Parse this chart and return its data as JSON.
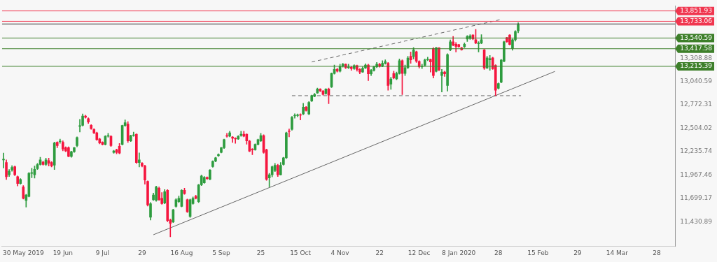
{
  "chart_data": {
    "type": "candlestick",
    "categories": [
      null,
      null,
      null,
      null,
      null,
      null,
      null,
      "30 May 2019",
      null,
      null,
      null,
      null,
      null,
      null,
      null,
      null,
      null,
      null,
      null,
      null,
      null,
      "19 Jun",
      null,
      null,
      null,
      null,
      null,
      null,
      null,
      null,
      null,
      null,
      null,
      null,
      null,
      "9 Jul",
      null,
      null,
      null,
      null,
      null,
      null,
      null,
      null,
      null,
      null,
      null,
      null,
      null,
      "29",
      null,
      null,
      null,
      null,
      null,
      null,
      null,
      null,
      null,
      null,
      null,
      null,
      null,
      "16 Aug",
      null,
      null,
      null,
      null,
      null,
      null,
      null,
      null,
      null,
      null,
      null,
      null,
      null,
      "5 Sep",
      null,
      null,
      null,
      null,
      null,
      null,
      null,
      null,
      null,
      null,
      null,
      null,
      null,
      "25",
      null,
      null,
      null,
      null,
      null,
      null,
      null,
      null,
      null,
      null,
      null,
      null,
      null,
      "15 Oct",
      null,
      null,
      null,
      null,
      null,
      null,
      null,
      null,
      null,
      null,
      null,
      null,
      null,
      "4 Nov",
      null,
      null,
      null,
      null,
      null,
      null,
      null,
      null,
      null,
      null,
      null,
      null,
      null,
      "22",
      null,
      null,
      null,
      null,
      null,
      null,
      null,
      null,
      null,
      null,
      null,
      null,
      null,
      "12 Dec",
      null,
      null,
      null,
      null,
      null,
      null,
      null,
      null,
      null,
      null,
      null,
      null,
      null,
      "8 Jan 2020",
      null,
      null,
      null,
      null,
      null,
      null,
      null,
      null,
      null,
      null,
      null,
      null,
      null,
      "28",
      null,
      null,
      null,
      null,
      null,
      null,
      null,
      null,
      null,
      null,
      null,
      null,
      null,
      "15 Feb",
      null,
      null,
      null,
      null,
      null,
      null,
      null,
      null,
      null,
      null,
      null,
      null,
      null,
      "29",
      null,
      null,
      null,
      null,
      null,
      null,
      null,
      null,
      null,
      null,
      null,
      null,
      null,
      "14 Mar",
      null,
      null,
      null,
      null,
      null,
      null,
      null,
      null,
      null,
      null,
      null,
      null,
      null,
      "28",
      null,
      null,
      null,
      null,
      null,
      null
    ],
    "ohlc": [
      [
        12140,
        12218,
        12048,
        12145
      ],
      [
        12110,
        12140,
        11915,
        11947
      ],
      [
        11970,
        12030,
        11950,
        12009
      ],
      [
        12024,
        12075,
        12010,
        12055
      ],
      [
        12063,
        12070,
        11960,
        11970
      ],
      [
        11947,
        11955,
        11840,
        11869
      ],
      [
        11869,
        11925,
        11860,
        11916
      ],
      [
        11830,
        11845,
        11690,
        11698
      ],
      [
        11675,
        11745,
        11598,
        11737
      ],
      [
        11721,
        11995,
        11715,
        11986
      ],
      [
        11986,
        12045,
        11935,
        11990
      ],
      [
        11970,
        12070,
        11930,
        12032
      ],
      [
        12040,
        12100,
        12030,
        12087
      ],
      [
        12087,
        12170,
        12080,
        12141
      ],
      [
        12117,
        12125,
        12080,
        12087
      ],
      [
        12087,
        12160,
        12075,
        12141
      ],
      [
        12133,
        12160,
        12070,
        12102
      ],
      [
        12110,
        12120,
        12060,
        12071
      ],
      [
        12079,
        12345,
        12030,
        12335
      ],
      [
        12343,
        12350,
        12280,
        12304
      ],
      [
        12350,
        12380,
        12330,
        12355
      ],
      [
        12343,
        12360,
        12245,
        12265
      ],
      [
        12280,
        12290,
        12235,
        12242
      ],
      [
        12280,
        12290,
        12175,
        12180
      ],
      [
        12180,
        12240,
        12170,
        12234
      ],
      [
        12234,
        12285,
        12225,
        12280
      ],
      [
        12304,
        12405,
        12290,
        12397
      ],
      [
        12525,
        12606,
        12460,
        12530
      ],
      [
        12537,
        12668,
        12530,
        12645
      ],
      [
        12645,
        12655,
        12620,
        12630
      ],
      [
        12614,
        12625,
        12560,
        12575
      ],
      [
        12537,
        12545,
        12490,
        12498
      ],
      [
        12490,
        12500,
        12440,
        12451
      ],
      [
        12451,
        12460,
        12365,
        12373
      ],
      [
        12381,
        12390,
        12325,
        12335
      ],
      [
        12343,
        12350,
        12310,
        12319
      ],
      [
        12319,
        12420,
        12310,
        12412
      ],
      [
        12412,
        12445,
        12400,
        12415
      ],
      [
        12412,
        12420,
        12295,
        12304
      ],
      [
        12226,
        12250,
        12215,
        12242
      ],
      [
        12257,
        12265,
        12210,
        12226
      ],
      [
        12296,
        12330,
        12210,
        12218
      ],
      [
        12319,
        12540,
        12310,
        12536
      ],
      [
        12536,
        12600,
        12525,
        12567
      ],
      [
        12552,
        12580,
        12340,
        12358
      ],
      [
        12358,
        12425,
        12350,
        12420
      ],
      [
        12420,
        12460,
        12410,
        12428
      ],
      [
        12435,
        12440,
        12100,
        12110
      ],
      [
        12110,
        12220,
        12060,
        12141
      ],
      [
        12102,
        12110,
        12060,
        12071
      ],
      [
        12071,
        12080,
        11860,
        11908
      ],
      [
        11893,
        11900,
        11610,
        11621
      ],
      [
        11481,
        11650,
        11450,
        11637
      ],
      [
        11683,
        11760,
        11675,
        11737
      ],
      [
        11675,
        11840,
        11665,
        11830
      ],
      [
        11815,
        11830,
        11675,
        11683
      ],
      [
        11698,
        11765,
        11630,
        11637
      ],
      [
        11644,
        11800,
        11635,
        11776
      ],
      [
        11792,
        11800,
        11430,
        11443
      ],
      [
        11450,
        11460,
        11257,
        11412
      ],
      [
        11427,
        11575,
        11420,
        11567
      ],
      [
        11605,
        11695,
        11595,
        11683
      ],
      [
        11660,
        11725,
        11650,
        11698
      ],
      [
        11605,
        11800,
        11600,
        11792
      ],
      [
        11792,
        11815,
        11745,
        11753
      ],
      [
        11683,
        11690,
        11535,
        11543
      ],
      [
        11489,
        11690,
        11480,
        11683
      ],
      [
        11637,
        11715,
        11630,
        11698
      ],
      [
        11721,
        11735,
        11690,
        11698
      ],
      [
        11660,
        11860,
        11650,
        11854
      ],
      [
        11854,
        11965,
        11845,
        11955
      ],
      [
        11877,
        11950,
        11870,
        11939
      ],
      [
        11939,
        11945,
        11915,
        11924
      ],
      [
        11916,
        12030,
        11910,
        12024
      ],
      [
        12063,
        12130,
        12055,
        12125
      ],
      [
        12125,
        12170,
        12118,
        12164
      ],
      [
        12187,
        12210,
        12180,
        12203
      ],
      [
        12226,
        12285,
        12220,
        12280
      ],
      [
        12280,
        12380,
        12270,
        12373
      ],
      [
        12420,
        12445,
        12400,
        12412
      ],
      [
        12412,
        12470,
        12405,
        12451
      ],
      [
        12404,
        12410,
        12340,
        12389
      ],
      [
        12389,
        12395,
        12330,
        12381
      ],
      [
        12381,
        12420,
        12375,
        12412
      ],
      [
        12420,
        12470,
        12410,
        12435
      ],
      [
        12435,
        12470,
        12405,
        12412
      ],
      [
        12435,
        12440,
        12320,
        12358
      ],
      [
        12358,
        12365,
        12235,
        12241
      ],
      [
        12265,
        12270,
        12200,
        12257
      ],
      [
        12257,
        12325,
        12250,
        12319
      ],
      [
        12319,
        12380,
        12310,
        12373
      ],
      [
        12358,
        12445,
        12350,
        12420
      ],
      [
        12420,
        12430,
        12215,
        12226
      ],
      [
        12257,
        12265,
        11905,
        11916
      ],
      [
        11932,
        11985,
        11830,
        11970
      ],
      [
        11970,
        12070,
        11945,
        12063
      ],
      [
        12017,
        12100,
        12005,
        12079
      ],
      [
        12079,
        12090,
        11950,
        11970
      ],
      [
        11970,
        12110,
        11965,
        12079
      ],
      [
        12087,
        12170,
        12080,
        12164
      ],
      [
        12164,
        12460,
        12155,
        12451
      ],
      [
        12474,
        12495,
        12405,
        12466
      ],
      [
        12490,
        12640,
        12480,
        12630
      ],
      [
        12645,
        12670,
        12620,
        12653
      ],
      [
        12650,
        12668,
        12636,
        12657
      ],
      [
        12660,
        12670,
        12600,
        12653
      ],
      [
        12668,
        12790,
        12660,
        12746
      ],
      [
        12746,
        12755,
        12700,
        12707
      ],
      [
        12668,
        12810,
        12660,
        12800
      ],
      [
        12816,
        12885,
        12810,
        12878
      ],
      [
        12870,
        12905,
        12865,
        12893
      ],
      [
        12909,
        12965,
        12905,
        12955
      ],
      [
        12955,
        12960,
        12925,
        12932
      ],
      [
        12932,
        12940,
        12885,
        12893
      ],
      [
        12901,
        12960,
        12895,
        12955
      ],
      [
        12955,
        12965,
        12785,
        12885
      ],
      [
        12979,
        13140,
        12970,
        13134
      ],
      [
        13134,
        13230,
        13125,
        13180
      ],
      [
        13180,
        13195,
        13150,
        13160
      ],
      [
        13160,
        13240,
        13150,
        13215
      ],
      [
        13215,
        13250,
        13205,
        13240
      ],
      [
        13240,
        13245,
        13190,
        13200
      ],
      [
        13200,
        13240,
        13190,
        13205
      ],
      [
        13205,
        13215,
        13170,
        13190
      ],
      [
        13190,
        13235,
        13180,
        13225
      ],
      [
        13225,
        13230,
        13160,
        13180
      ],
      [
        13180,
        13190,
        13130,
        13150
      ],
      [
        13150,
        13210,
        13145,
        13195
      ],
      [
        13195,
        13245,
        13190,
        13230
      ],
      [
        13230,
        13240,
        13050,
        13130
      ],
      [
        13130,
        13180,
        13110,
        13170
      ],
      [
        13170,
        13220,
        13160,
        13210
      ],
      [
        13210,
        13260,
        13200,
        13240
      ],
      [
        13240,
        13250,
        13205,
        13215
      ],
      [
        13215,
        13280,
        13210,
        13250
      ],
      [
        13250,
        13290,
        13240,
        13270
      ],
      [
        13250,
        13260,
        12940,
        12995
      ],
      [
        13010,
        13090,
        12950,
        13070
      ],
      [
        13134,
        13160,
        13070,
        13080
      ],
      [
        13070,
        13150,
        13060,
        13134
      ],
      [
        13134,
        13300,
        13125,
        13280
      ],
      [
        13280,
        13290,
        12890,
        13134
      ],
      [
        13134,
        13230,
        13110,
        13200
      ],
      [
        13200,
        13330,
        13190,
        13310
      ],
      [
        13330,
        13380,
        13250,
        13290
      ],
      [
        13328,
        13430,
        13300,
        13405
      ],
      [
        13382,
        13390,
        13260,
        13273
      ],
      [
        13273,
        13280,
        13195,
        13211
      ],
      [
        13211,
        13240,
        13190,
        13215
      ],
      [
        13227,
        13300,
        13215,
        13289
      ],
      [
        13289,
        13320,
        13280,
        13292
      ],
      [
        13295,
        13300,
        13150,
        13265
      ],
      [
        13421,
        13430,
        13080,
        13110
      ],
      [
        13157,
        13435,
        13150,
        13428
      ],
      [
        13428,
        13430,
        13165,
        13172
      ],
      [
        13110,
        13180,
        12920,
        13149
      ],
      [
        13149,
        13160,
        13100,
        13130
      ],
      [
        12994,
        13360,
        12930,
        13351
      ],
      [
        13405,
        13520,
        13395,
        13498
      ],
      [
        13498,
        13560,
        13450,
        13459
      ],
      [
        13470,
        13490,
        13380,
        13445
      ],
      [
        13465,
        13470,
        13435,
        13440
      ],
      [
        13428,
        13435,
        13400,
        13405
      ],
      [
        13440,
        13485,
        13430,
        13470
      ],
      [
        13529,
        13570,
        13500,
        13560
      ],
      [
        13535,
        13580,
        13525,
        13565
      ],
      [
        13575,
        13580,
        13520,
        13530
      ],
      [
        13521,
        13640,
        13475,
        13483
      ],
      [
        13475,
        13500,
        13380,
        13480
      ],
      [
        13483,
        13580,
        13475,
        13521
      ],
      [
        13405,
        13410,
        13180,
        13196
      ],
      [
        13196,
        13330,
        13190,
        13312
      ],
      [
        13290,
        13340,
        13170,
        13305
      ],
      [
        13312,
        13320,
        13180,
        13188
      ],
      [
        13227,
        13235,
        12878,
        12940
      ],
      [
        12963,
        13025,
        12955,
        13017
      ],
      [
        13033,
        13295,
        13025,
        13289
      ],
      [
        13273,
        13505,
        13265,
        13498
      ],
      [
        13545,
        13550,
        13490,
        13498
      ],
      [
        13576,
        13580,
        13460,
        13467
      ],
      [
        13421,
        13530,
        13400,
        13521
      ],
      [
        13521,
        13625,
        13505,
        13615
      ],
      [
        13622,
        13715,
        13600,
        13692
      ],
      null,
      null,
      null,
      null,
      null,
      null,
      null,
      null,
      null,
      null,
      null,
      null,
      null,
      null,
      null,
      null,
      null,
      null,
      null,
      null,
      null,
      null,
      null,
      null,
      null,
      null,
      null,
      null,
      null,
      null,
      null,
      null,
      null,
      null,
      null,
      null,
      null,
      null,
      null,
      null,
      null,
      null,
      null,
      null,
      null,
      null,
      null,
      null,
      null,
      null,
      null,
      null,
      null,
      null,
      null
    ],
    "colors": [
      "#2e9c3f",
      "#f5163f",
      "#2e9c3f",
      "#2e9c3f",
      "#f5163f",
      "#f5163f",
      "#2e9c3f",
      "#f5163f",
      "#2e9c3f",
      "#2e9c3f",
      "#2e9c3f",
      "#2e9c3f",
      "#2e9c3f",
      "#2e9c3f",
      "#f5163f",
      "#2e9c3f",
      "#f5163f",
      "#f5163f",
      "#2e9c3f",
      "#f5163f",
      "#2e9c3f",
      "#f5163f",
      "#f5163f",
      "#f5163f",
      "#2e9c3f",
      "#2e9c3f",
      "#2e9c3f",
      "#2e9c3f",
      "#2e9c3f",
      "#f5163f",
      "#f5163f",
      "#f5163f",
      "#f5163f",
      "#f5163f",
      "#f5163f",
      "#f5163f",
      "#2e9c3f",
      "#2e9c3f",
      "#f5163f",
      "#2e9c3f",
      "#f5163f",
      "#f5163f",
      "#2e9c3f",
      "#2e9c3f",
      "#f5163f",
      "#2e9c3f",
      "#2e9c3f",
      "#f5163f",
      "#2e9c3f",
      "#f5163f",
      "#f5163f",
      "#f5163f",
      "#2e9c3f",
      "#2e9c3f",
      "#2e9c3f",
      "#f5163f",
      "#f5163f",
      "#2e9c3f",
      "#f5163f",
      "#f5163f",
      "#2e9c3f",
      "#2e9c3f",
      "#2e9c3f",
      "#2e9c3f",
      "#f5163f",
      "#f5163f",
      "#2e9c3f",
      "#2e9c3f",
      "#f5163f",
      "#2e9c3f",
      "#2e9c3f",
      "#2e9c3f",
      "#f5163f",
      "#2e9c3f",
      "#2e9c3f",
      "#2e9c3f",
      "#2e9c3f",
      "#2e9c3f",
      "#2e9c3f",
      "#f5163f",
      "#2e9c3f",
      "#f5163f",
      "#f5163f",
      "#2e9c3f",
      "#2e9c3f",
      "#f5163f",
      "#f5163f",
      "#f5163f",
      "#f5163f",
      "#2e9c3f",
      "#2e9c3f",
      "#2e9c3f",
      "#f5163f",
      "#f5163f",
      "#2e9c3f",
      "#2e9c3f",
      "#2e9c3f",
      "#f5163f",
      "#2e9c3f",
      "#2e9c3f",
      "#2e9c3f",
      "#f5163f",
      "#2e9c3f",
      "#2e9c3f",
      "#2e9c3f",
      "#f5163f",
      "#2e9c3f",
      "#f5163f",
      "#2e9c3f",
      "#2e9c3f",
      "#2e9c3f",
      "#2e9c3f",
      "#f5163f",
      "#f5163f",
      "#2e9c3f",
      "#f5163f",
      "#2e9c3f",
      "#2e9c3f",
      "#f5163f",
      "#2e9c3f",
      "#2e9c3f",
      "#f5163f",
      "#2e9c3f",
      "#f5163f",
      "#2e9c3f",
      "#f5163f",
      "#f5163f",
      "#2e9c3f",
      "#2e9c3f",
      "#f5163f",
      "#2e9c3f",
      "#2e9c3f",
      "#2e9c3f",
      "#f5163f",
      "#2e9c3f",
      "#2e9c3f",
      "#f5163f",
      "#2e9c3f",
      "#f5163f",
      "#2e9c3f",
      "#2e9c3f",
      "#f5163f",
      "#2e9c3f",
      "#2e9c3f",
      "#f5163f",
      "#2e9c3f",
      "#f5163f",
      "#f5163f",
      "#2e9c3f",
      "#2e9c3f",
      "#2e9c3f",
      "#f5163f",
      "#f5163f",
      "#2e9c3f",
      "#f5163f",
      "#2e9c3f",
      "#f5163f",
      "#2e9c3f",
      "#2e9c3f",
      "#f5163f",
      "#f5163f",
      "#f5163f",
      "#f5163f",
      "#2e9c3f",
      "#2e9c3f",
      "#2e9c3f",
      "#f5163f",
      "#f5163f",
      "#2e9c3f",
      "#2e9c3f",
      "#f5163f",
      "#2e9c3f",
      "#2e9c3f",
      "#f5163f",
      "#f5163f",
      "#2e9c3f",
      "#2e9c3f",
      "#2e9c3f",
      "#f5163f",
      "#f5163f",
      "#2e9c3f",
      "#2e9c3f",
      "#2e9c3f",
      null,
      null,
      null,
      null,
      null,
      null,
      null,
      null,
      null,
      null,
      null,
      null,
      null,
      null,
      null,
      null,
      null,
      null,
      null,
      null,
      null,
      null,
      null,
      null,
      null,
      null,
      null,
      null,
      null,
      null,
      null,
      null,
      null,
      null,
      null,
      null,
      null,
      null,
      null,
      null,
      null,
      null,
      null,
      null,
      null,
      null,
      null,
      null,
      null,
      null,
      null,
      null,
      null,
      null,
      null
    ],
    "series": [
      {
        "type": "line",
        "color": "#666666",
        "line_style": "solid",
        "values": [
          null,
          null,
          null,
          null,
          null,
          null,
          null,
          null,
          null,
          null,
          null,
          null,
          null,
          null,
          null,
          null,
          null,
          null,
          null,
          null,
          null,
          null,
          null,
          null,
          null,
          null,
          null,
          null,
          null,
          null,
          null,
          null,
          null,
          null,
          null,
          null,
          null,
          null,
          null,
          null,
          null,
          null,
          null,
          null,
          null,
          null,
          null,
          null,
          null,
          null,
          null,
          null,
          null,
          11280,
          null,
          null,
          null,
          null,
          null,
          null,
          null,
          null,
          null,
          null,
          null,
          null,
          null,
          null,
          null,
          null,
          null,
          null,
          null,
          null,
          null,
          null,
          null,
          null,
          null,
          null,
          null,
          null,
          null,
          null,
          null,
          null,
          null,
          null,
          null,
          null,
          null,
          null,
          null,
          null,
          null,
          null,
          null,
          null,
          null,
          null,
          null,
          null,
          null,
          null,
          null,
          null,
          null,
          null,
          null,
          null,
          null,
          null,
          null,
          null,
          null,
          null,
          null,
          null,
          null,
          null,
          null,
          null,
          null,
          null,
          null,
          null,
          null,
          null,
          null,
          null,
          null,
          null,
          null,
          null,
          null,
          null,
          null,
          null,
          null,
          null,
          null,
          null,
          null,
          null,
          null,
          null,
          null,
          null,
          null,
          null,
          null,
          null,
          null,
          null,
          null,
          null,
          null,
          null,
          null,
          null,
          null,
          null,
          null,
          null,
          null,
          null,
          null,
          null,
          null,
          null,
          null,
          null,
          null,
          null,
          null,
          null,
          null,
          null,
          null,
          null,
          null,
          null,
          null,
          null,
          null,
          null,
          null,
          null,
          null,
          null,
          null,
          null,
          null,
          null,
          null,
          13157,
          null,
          null,
          null,
          null,
          null,
          null,
          null,
          null,
          null,
          null,
          null,
          null,
          null,
          null,
          null,
          null,
          null,
          null,
          null,
          null,
          null,
          null,
          null,
          null,
          null,
          null,
          null,
          null,
          null,
          null,
          null,
          null,
          null,
          null,
          null,
          null,
          null,
          null,
          null,
          null,
          null,
          null
        ]
      },
      {
        "type": "line",
        "color": "#666666",
        "line_style": "dashed",
        "values": [
          null,
          null,
          null,
          null,
          null,
          null,
          null,
          null,
          null,
          null,
          null,
          null,
          null,
          null,
          null,
          null,
          null,
          null,
          null,
          null,
          null,
          null,
          null,
          null,
          null,
          null,
          null,
          null,
          null,
          null,
          null,
          null,
          null,
          null,
          null,
          null,
          null,
          null,
          null,
          null,
          null,
          null,
          null,
          null,
          null,
          null,
          null,
          null,
          null,
          null,
          null,
          null,
          null,
          null,
          null,
          null,
          null,
          null,
          null,
          null,
          null,
          null,
          null,
          null,
          null,
          null,
          null,
          null,
          null,
          null,
          null,
          null,
          null,
          null,
          null,
          null,
          null,
          null,
          null,
          null,
          null,
          null,
          null,
          null,
          null,
          null,
          null,
          null,
          null,
          null,
          null,
          null,
          null,
          null,
          null,
          null,
          null,
          null,
          null,
          null,
          null,
          null,
          null,
          null,
          null,
          null,
          null,
          null,
          null,
          13265,
          null,
          null,
          null,
          null,
          null,
          null,
          null,
          null,
          null,
          null,
          null,
          null,
          null,
          null,
          null,
          null,
          null,
          null,
          null,
          null,
          null,
          null,
          null,
          null,
          null,
          null,
          null,
          null,
          null,
          null,
          null,
          null,
          null,
          null,
          null,
          null,
          null,
          null,
          null,
          null,
          null,
          null,
          null,
          null,
          null,
          null,
          null,
          null,
          null,
          null,
          null,
          null,
          null,
          null,
          null,
          null,
          null,
          null,
          null,
          null,
          null,
          null,
          null,
          null,
          null,
          null,
          13754,
          null,
          null,
          null,
          null,
          null,
          null,
          null,
          null,
          null,
          null,
          null,
          null,
          null,
          null,
          null,
          null,
          null,
          null,
          null,
          null,
          null,
          null,
          null,
          null,
          null,
          null,
          null,
          null,
          null,
          null,
          null,
          null,
          null,
          null,
          null,
          null,
          null,
          null,
          null,
          null,
          null,
          null,
          null,
          null,
          null,
          null,
          null,
          null,
          null,
          null,
          null,
          null,
          null,
          null,
          null,
          null,
          null,
          null,
          null,
          null,
          null
        ]
      },
      {
        "type": "line",
        "color": "#666666",
        "line_style": "dashed",
        "values": [
          null,
          null,
          null,
          null,
          null,
          null,
          null,
          null,
          null,
          null,
          null,
          null,
          null,
          null,
          null,
          null,
          null,
          null,
          null,
          null,
          null,
          null,
          null,
          null,
          null,
          null,
          null,
          null,
          null,
          null,
          null,
          null,
          null,
          null,
          null,
          null,
          null,
          null,
          null,
          null,
          null,
          null,
          null,
          null,
          null,
          null,
          null,
          null,
          null,
          null,
          null,
          null,
          null,
          null,
          null,
          null,
          null,
          null,
          null,
          null,
          null,
          null,
          null,
          null,
          null,
          null,
          null,
          null,
          null,
          null,
          null,
          null,
          null,
          null,
          null,
          null,
          null,
          null,
          null,
          null,
          null,
          null,
          null,
          null,
          null,
          null,
          null,
          null,
          null,
          null,
          null,
          null,
          null,
          null,
          null,
          null,
          null,
          null,
          null,
          null,
          null,
          null,
          12878,
          null,
          null,
          null,
          null,
          null,
          null,
          null,
          null,
          null,
          null,
          null,
          null,
          null,
          null,
          null,
          null,
          null,
          null,
          null,
          null,
          null,
          null,
          null,
          null,
          null,
          null,
          null,
          null,
          null,
          null,
          null,
          null,
          null,
          null,
          null,
          null,
          null,
          null,
          null,
          null,
          null,
          null,
          null,
          null,
          null,
          null,
          null,
          null,
          null,
          null,
          null,
          null,
          null,
          null,
          null,
          null,
          null,
          null,
          null,
          null,
          null,
          null,
          null,
          null,
          null,
          null,
          null,
          null,
          null,
          null,
          null,
          null,
          null,
          null,
          null,
          null,
          null,
          null,
          null,
          null,
          12878,
          null,
          null,
          null,
          null,
          null,
          null,
          null,
          null,
          null,
          null,
          null,
          null,
          null,
          null,
          null,
          null,
          null,
          null,
          null,
          null,
          null,
          null,
          null,
          null,
          null,
          null,
          null,
          null,
          null,
          null,
          null,
          null,
          null,
          null,
          null,
          null,
          null,
          null,
          null,
          null,
          null,
          null,
          null,
          null,
          null,
          null,
          null,
          null,
          null,
          null,
          null,
          null,
          null,
          null
        ]
      }
    ],
    "ylim": [
      11150,
      13910
    ],
    "yticks": [
      {
        "value": 11430.89,
        "label": "11,430.89"
      },
      {
        "value": 11699.17,
        "label": "11,699.17"
      },
      {
        "value": 11967.46,
        "label": "11,967.46"
      },
      {
        "value": 12235.74,
        "label": "12,235.74"
      },
      {
        "value": 12504.02,
        "label": "12,504.02"
      },
      {
        "value": 12772.31,
        "label": "12,772.31"
      },
      {
        "value": 13040.59,
        "label": "13,040.59"
      },
      {
        "value": 13308.88,
        "label": "13,308.88"
      }
    ],
    "ref_lines": [
      {
        "axis": "y",
        "value": 13851.93,
        "label": "13,851.93",
        "color": "#f0364f"
      },
      {
        "axis": "y",
        "value": 13733.06,
        "label": "13,733.06",
        "color": "#f0364f"
      },
      {
        "axis": "y",
        "value": 13702,
        "color": "#333333"
      },
      {
        "axis": "y",
        "value": 13540.59,
        "label": "13,540.59",
        "color": "#3d7f2a"
      },
      {
        "axis": "y",
        "value": 13417.58,
        "label": "13,417.58",
        "color": "#3d7f2a"
      },
      {
        "axis": "y",
        "value": 13215.39,
        "label": "13,215.39",
        "color": "#3d7f2a"
      }
    ]
  }
}
